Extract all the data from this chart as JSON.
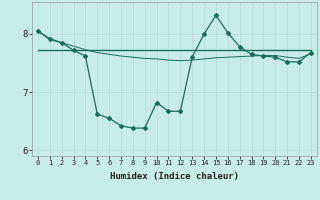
{
  "xlabel": "Humidex (Indice chaleur)",
  "ylabel": "",
  "background_color": "#c8ece6",
  "grid_color": "#b8ddd8",
  "line_color": "#1a6b5a",
  "x_values": [
    0,
    1,
    2,
    3,
    4,
    5,
    6,
    7,
    8,
    9,
    10,
    11,
    12,
    13,
    14,
    15,
    16,
    17,
    18,
    19,
    20,
    21,
    22,
    23
  ],
  "series1": [
    8.05,
    7.92,
    7.85,
    7.72,
    7.62,
    6.62,
    6.55,
    6.42,
    6.38,
    6.38,
    6.82,
    6.67,
    6.67,
    7.6,
    8.0,
    8.32,
    8.02,
    7.78,
    7.65,
    7.62,
    7.6,
    7.52,
    7.52,
    7.68
  ],
  "series2_flat": [
    7.72,
    7.72,
    7.72,
    7.72,
    7.72,
    7.72,
    7.72,
    7.72,
    7.72,
    7.72,
    7.72,
    7.72,
    7.72,
    7.72,
    7.72,
    7.72,
    7.72,
    7.72,
    7.72,
    7.72,
    7.72,
    7.72,
    7.72,
    7.72
  ],
  "series3_declining": [
    8.05,
    7.9,
    7.85,
    7.79,
    7.73,
    7.68,
    7.65,
    7.62,
    7.6,
    7.58,
    7.57,
    7.55,
    7.54,
    7.55,
    7.57,
    7.59,
    7.6,
    7.61,
    7.62,
    7.63,
    7.63,
    7.6,
    7.58,
    7.66
  ],
  "ylim": [
    5.9,
    8.55
  ],
  "yticks": [
    6,
    7,
    8
  ],
  "xlim": [
    -0.5,
    23.5
  ],
  "xticks": [
    0,
    1,
    2,
    3,
    4,
    5,
    6,
    7,
    8,
    9,
    10,
    11,
    12,
    13,
    14,
    15,
    16,
    17,
    18,
    19,
    20,
    21,
    22,
    23
  ]
}
